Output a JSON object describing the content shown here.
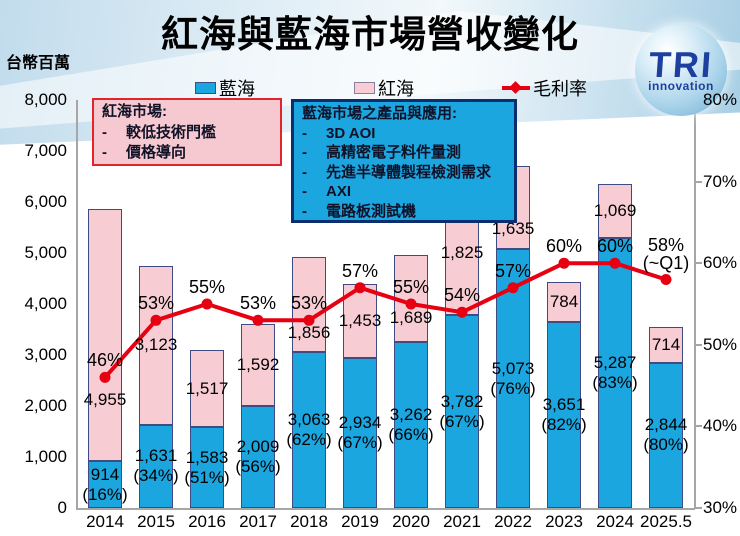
{
  "page": {
    "title": "紅海與藍海市場營收變化",
    "unit_label": "台幣百萬"
  },
  "logo": {
    "brand": "TRI",
    "tagline": "innovation"
  },
  "legend": {
    "items": [
      {
        "label": "藍海",
        "swatch": "blue-rect"
      },
      {
        "label": "紅海",
        "swatch": "pink-rect"
      },
      {
        "label": "毛利率",
        "swatch": "red-line-diamond"
      }
    ]
  },
  "callouts": {
    "red_market": {
      "title": "紅海市場:",
      "bullets": [
        {
          "text": "較低技術門檻"
        },
        {
          "text": "價格導向"
        }
      ]
    },
    "blue_market": {
      "title": "藍海市場之產品與應用:",
      "bullets": [
        {
          "text": "3D AOI",
          "strong": true
        },
        {
          "text": "高精密電子料件量測"
        },
        {
          "text": "先進半導體製程檢測需求"
        },
        {
          "text": "AXI",
          "strong": true
        },
        {
          "text": "電路板測試機"
        }
      ]
    }
  },
  "chart_data": {
    "type": "combo-stacked-bar-line",
    "categories": [
      "2014",
      "2015",
      "2016",
      "2017",
      "2018",
      "2019",
      "2020",
      "2021",
      "2022",
      "2023",
      "2024",
      "2025.5"
    ],
    "bar_series": [
      {
        "name": "藍海",
        "role": "blue",
        "color": "#1CA6E0",
        "values": [
          914,
          1631,
          1583,
          2009,
          3063,
          2934,
          3262,
          3782,
          5073,
          3651,
          5287,
          2844
        ],
        "value_labels": [
          "914",
          "1,631",
          "1,583",
          "2,009",
          "3,063",
          "2,934",
          "3,262",
          "3,782",
          "5,073",
          "3,651",
          "5,287",
          "2,844"
        ],
        "share_labels": [
          "(16%)",
          "(34%)",
          "(51%)",
          "(56%)",
          "(62%)",
          "(67%)",
          "(66%)",
          "(67%)",
          "(76%)",
          "(82%)",
          "(83%)",
          "(80%)"
        ]
      },
      {
        "name": "紅海",
        "role": "pink",
        "color": "#F7CDD3",
        "values": [
          4955,
          3123,
          1517,
          1592,
          1856,
          1453,
          1689,
          1825,
          1635,
          784,
          1069,
          714
        ],
        "value_labels": [
          "4,955",
          "3,123",
          "1,517",
          "1,592",
          "1,856",
          "1,453",
          "1,689",
          "1,825",
          "1,635",
          "784",
          "1,069",
          "714"
        ]
      }
    ],
    "line_series": {
      "name": "毛利率",
      "color": "#E60012",
      "axis": "right",
      "values_pct": [
        46,
        53,
        55,
        53,
        53,
        57,
        55,
        54,
        57,
        60,
        60,
        58
      ],
      "labels": [
        "46%",
        "53%",
        "55%",
        "53%",
        "53%",
        "57%",
        "55%",
        "54%",
        "57%",
        "60%",
        "60%",
        "58%"
      ],
      "last_point_note": "(~Q1)"
    },
    "left_axis": {
      "min": 0,
      "max": 8000,
      "tick_step": 1000,
      "tick_labels": [
        "0",
        "1,000",
        "2,000",
        "3,000",
        "4,000",
        "5,000",
        "6,000",
        "7,000",
        "8,000"
      ]
    },
    "right_axis": {
      "min": 30,
      "max": 80,
      "tick_step": 10,
      "tick_labels": [
        "30%",
        "40%",
        "50%",
        "60%",
        "70%",
        "80%"
      ]
    },
    "grid": false,
    "legend_position": "top",
    "layout_hints": {
      "pink_label_y": {
        "0": 400,
        "4": 333,
        "6": 318,
        "7": 253,
        "8": 229
      }
    }
  }
}
